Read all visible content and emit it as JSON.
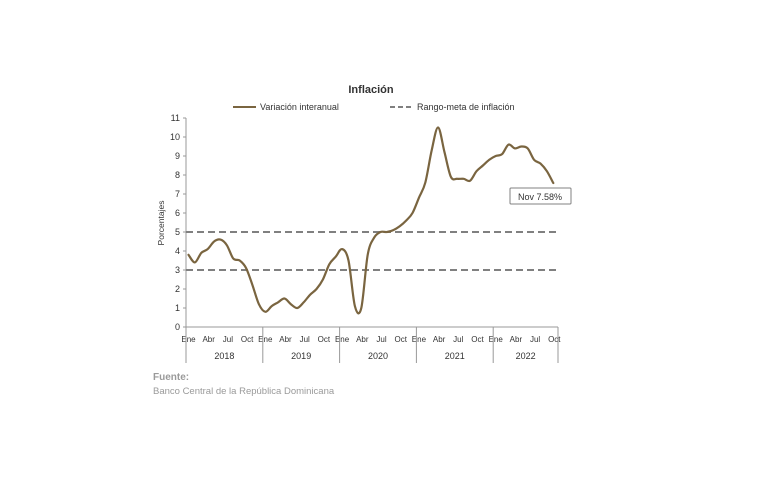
{
  "chart_data": {
    "type": "line",
    "title": "Inflación",
    "ylabel": "Porcentajes",
    "xlabel": "",
    "ylim": [
      0,
      11
    ],
    "yticks": [
      0,
      1,
      2,
      3,
      4,
      5,
      6,
      7,
      8,
      9,
      10,
      11
    ],
    "grid": false,
    "legend_position": "top",
    "month_tick_labels": [
      "Ene",
      "Abr",
      "Jul",
      "Oct"
    ],
    "years": [
      "2018",
      "2019",
      "2020",
      "2021",
      "2022"
    ],
    "series": [
      {
        "name": "Variación interanual",
        "color": "#7a6540",
        "values": [
          3.8,
          3.4,
          3.9,
          4.1,
          4.5,
          4.6,
          4.3,
          3.6,
          3.5,
          3.1,
          2.2,
          1.2,
          0.8,
          1.1,
          1.3,
          1.5,
          1.2,
          1.0,
          1.3,
          1.7,
          2.0,
          2.5,
          3.3,
          3.7,
          4.1,
          3.5,
          1.1,
          1.0,
          3.8,
          4.7,
          5.0,
          5.0,
          5.1,
          5.3,
          5.6,
          6.0,
          6.8,
          7.6,
          9.3,
          10.5,
          9.2,
          7.9,
          7.8,
          7.8,
          7.7,
          8.2,
          8.5,
          8.8,
          9.0,
          9.1,
          9.6,
          9.4,
          9.5,
          9.4,
          8.8,
          8.6,
          8.2,
          7.58
        ]
      },
      {
        "name": "Rango-meta de inflación",
        "color": "#808080",
        "style": "dashed",
        "bounds": [
          3,
          5
        ]
      }
    ],
    "annotation": "Nov 7.58%"
  },
  "source": {
    "label": "Fuente:",
    "text": "Banco Central de la República Dominicana"
  }
}
